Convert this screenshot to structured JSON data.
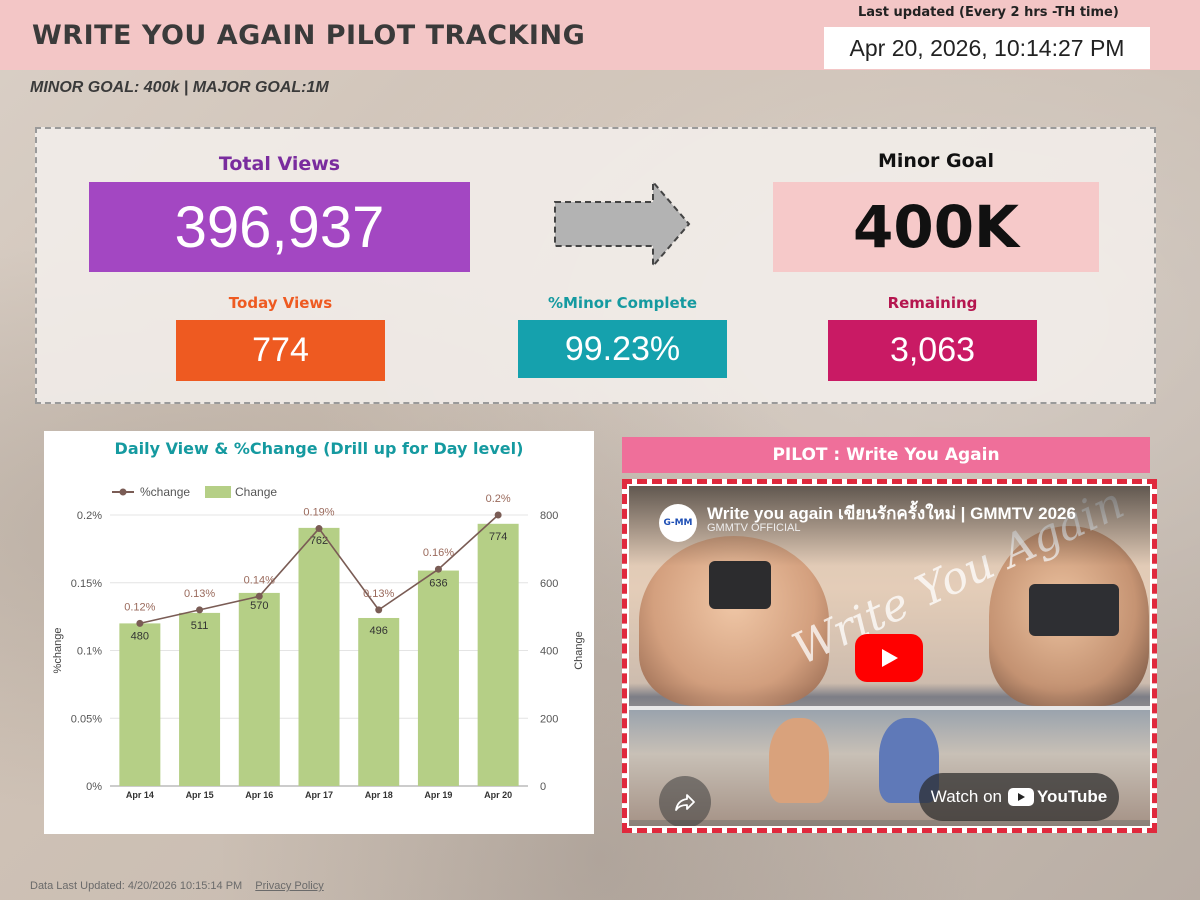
{
  "header": {
    "title": "WRITE YOU AGAIN PILOT TRACKING",
    "last_updated_label": "Last updated (Every 2 hrs -TH time)",
    "last_updated_value": "Apr 20, 2026, 10:14:27 PM"
  },
  "goals_line": "MINOR GOAL: 400k |  MAJOR GOAL:1M",
  "kpi": {
    "total_views_label": "Total Views",
    "total_views_value": "396,937",
    "minor_goal_label": "Minor Goal",
    "minor_goal_value": "400K",
    "today_views_label": "Today Views",
    "today_views_value": "774",
    "minor_complete_label": "%Minor Complete",
    "minor_complete_value": "99.23%",
    "remaining_label": "Remaining",
    "remaining_value": "3,063"
  },
  "colors": {
    "header_bg": "#f3c6c6",
    "total_views": "#a347c2",
    "today_views": "#ee5a21",
    "minor_complete": "#15a1ad",
    "remaining": "#c91a64",
    "minor_goal_box": "#f6c9c9",
    "bar": "#b5cf86",
    "line": "#7a5c55",
    "chart_title": "#159aa0"
  },
  "chart_data": {
    "type": "bar",
    "title": "Daily View & %Change (Drill up for Day level)",
    "legend": [
      "%change",
      "Change"
    ],
    "legend_position": "top-left",
    "categories": [
      "Apr 14",
      "Apr 15",
      "Apr 16",
      "Apr 17",
      "Apr 18",
      "Apr 19",
      "Apr 20"
    ],
    "series": [
      {
        "name": "Change",
        "kind": "bar",
        "axis": "right",
        "values": [
          480,
          511,
          570,
          762,
          496,
          636,
          774
        ],
        "labels": [
          "480",
          "511",
          "570",
          "762",
          "496",
          "636",
          "774"
        ]
      },
      {
        "name": "%change",
        "kind": "line",
        "axis": "left",
        "values": [
          0.12,
          0.13,
          0.14,
          0.19,
          0.13,
          0.16,
          0.2
        ],
        "labels": [
          "0.12%",
          "0.13%",
          "0.14%",
          "0.19%",
          "0.13%",
          "0.16%",
          "0.2%"
        ]
      }
    ],
    "y_left": {
      "label": "%change",
      "ticks": [
        "0%",
        "0.05%",
        "0.1%",
        "0.15%",
        "0.2%"
      ],
      "range": [
        0,
        0.2
      ]
    },
    "y_right": {
      "label": "Change",
      "ticks": [
        "0",
        "200",
        "400",
        "600",
        "800"
      ],
      "range": [
        0,
        800
      ]
    },
    "grid": true
  },
  "video": {
    "header": "PILOT : Write You Again",
    "title": "Write you again เขียนรักครั้งใหม่ | GMMTV 2026",
    "channel": "GMMTV OFFICIAL",
    "channel_logo_text": "G-MM",
    "overlay_script": "Write You Again",
    "watch_on": "Watch on",
    "youtube": "YouTube"
  },
  "footer": {
    "data_updated": "Data Last Updated: 4/20/2026 10:15:14 PM",
    "privacy": "Privacy Policy"
  }
}
